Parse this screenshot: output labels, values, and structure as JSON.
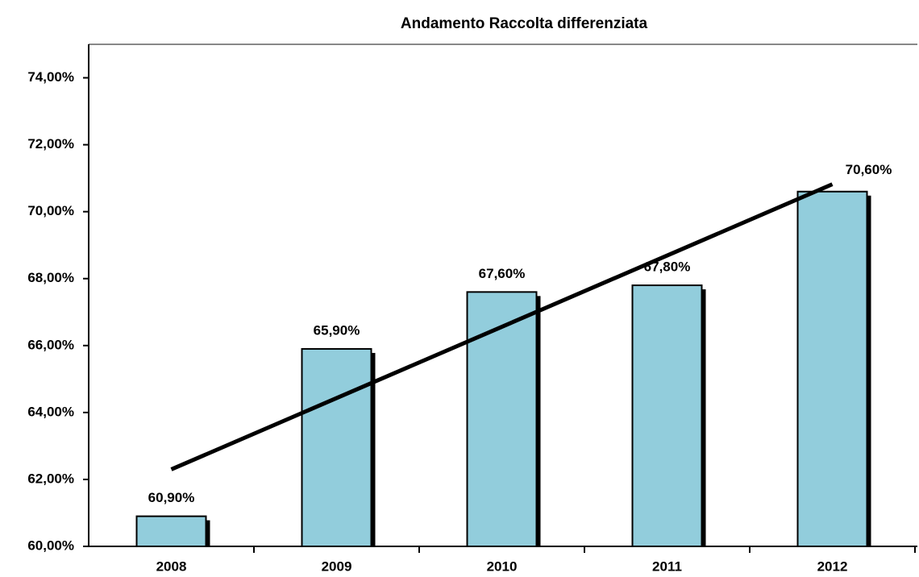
{
  "chart_data": {
    "type": "bar",
    "title": "Andamento Raccolta differenziata",
    "categories": [
      "2008",
      "2009",
      "2010",
      "2011",
      "2012"
    ],
    "values": [
      60.9,
      65.9,
      67.6,
      67.8,
      70.6
    ],
    "value_labels": [
      "60,90%",
      "65,90%",
      "67,60%",
      "67,80%",
      "70,60%"
    ],
    "color": "#92cddc",
    "ylim": [
      60,
      75
    ],
    "yticks": [
      {
        "value": 60,
        "label": "60,00%"
      },
      {
        "value": 62,
        "label": "62,00%"
      },
      {
        "value": 64,
        "label": "64,00%"
      },
      {
        "value": 66,
        "label": "66,00%"
      },
      {
        "value": 68,
        "label": "68,00%"
      },
      {
        "value": 70,
        "label": "70,00%"
      },
      {
        "value": 72,
        "label": "72,00%"
      },
      {
        "value": 74,
        "label": "74,00%"
      }
    ],
    "trendline": "linear"
  }
}
